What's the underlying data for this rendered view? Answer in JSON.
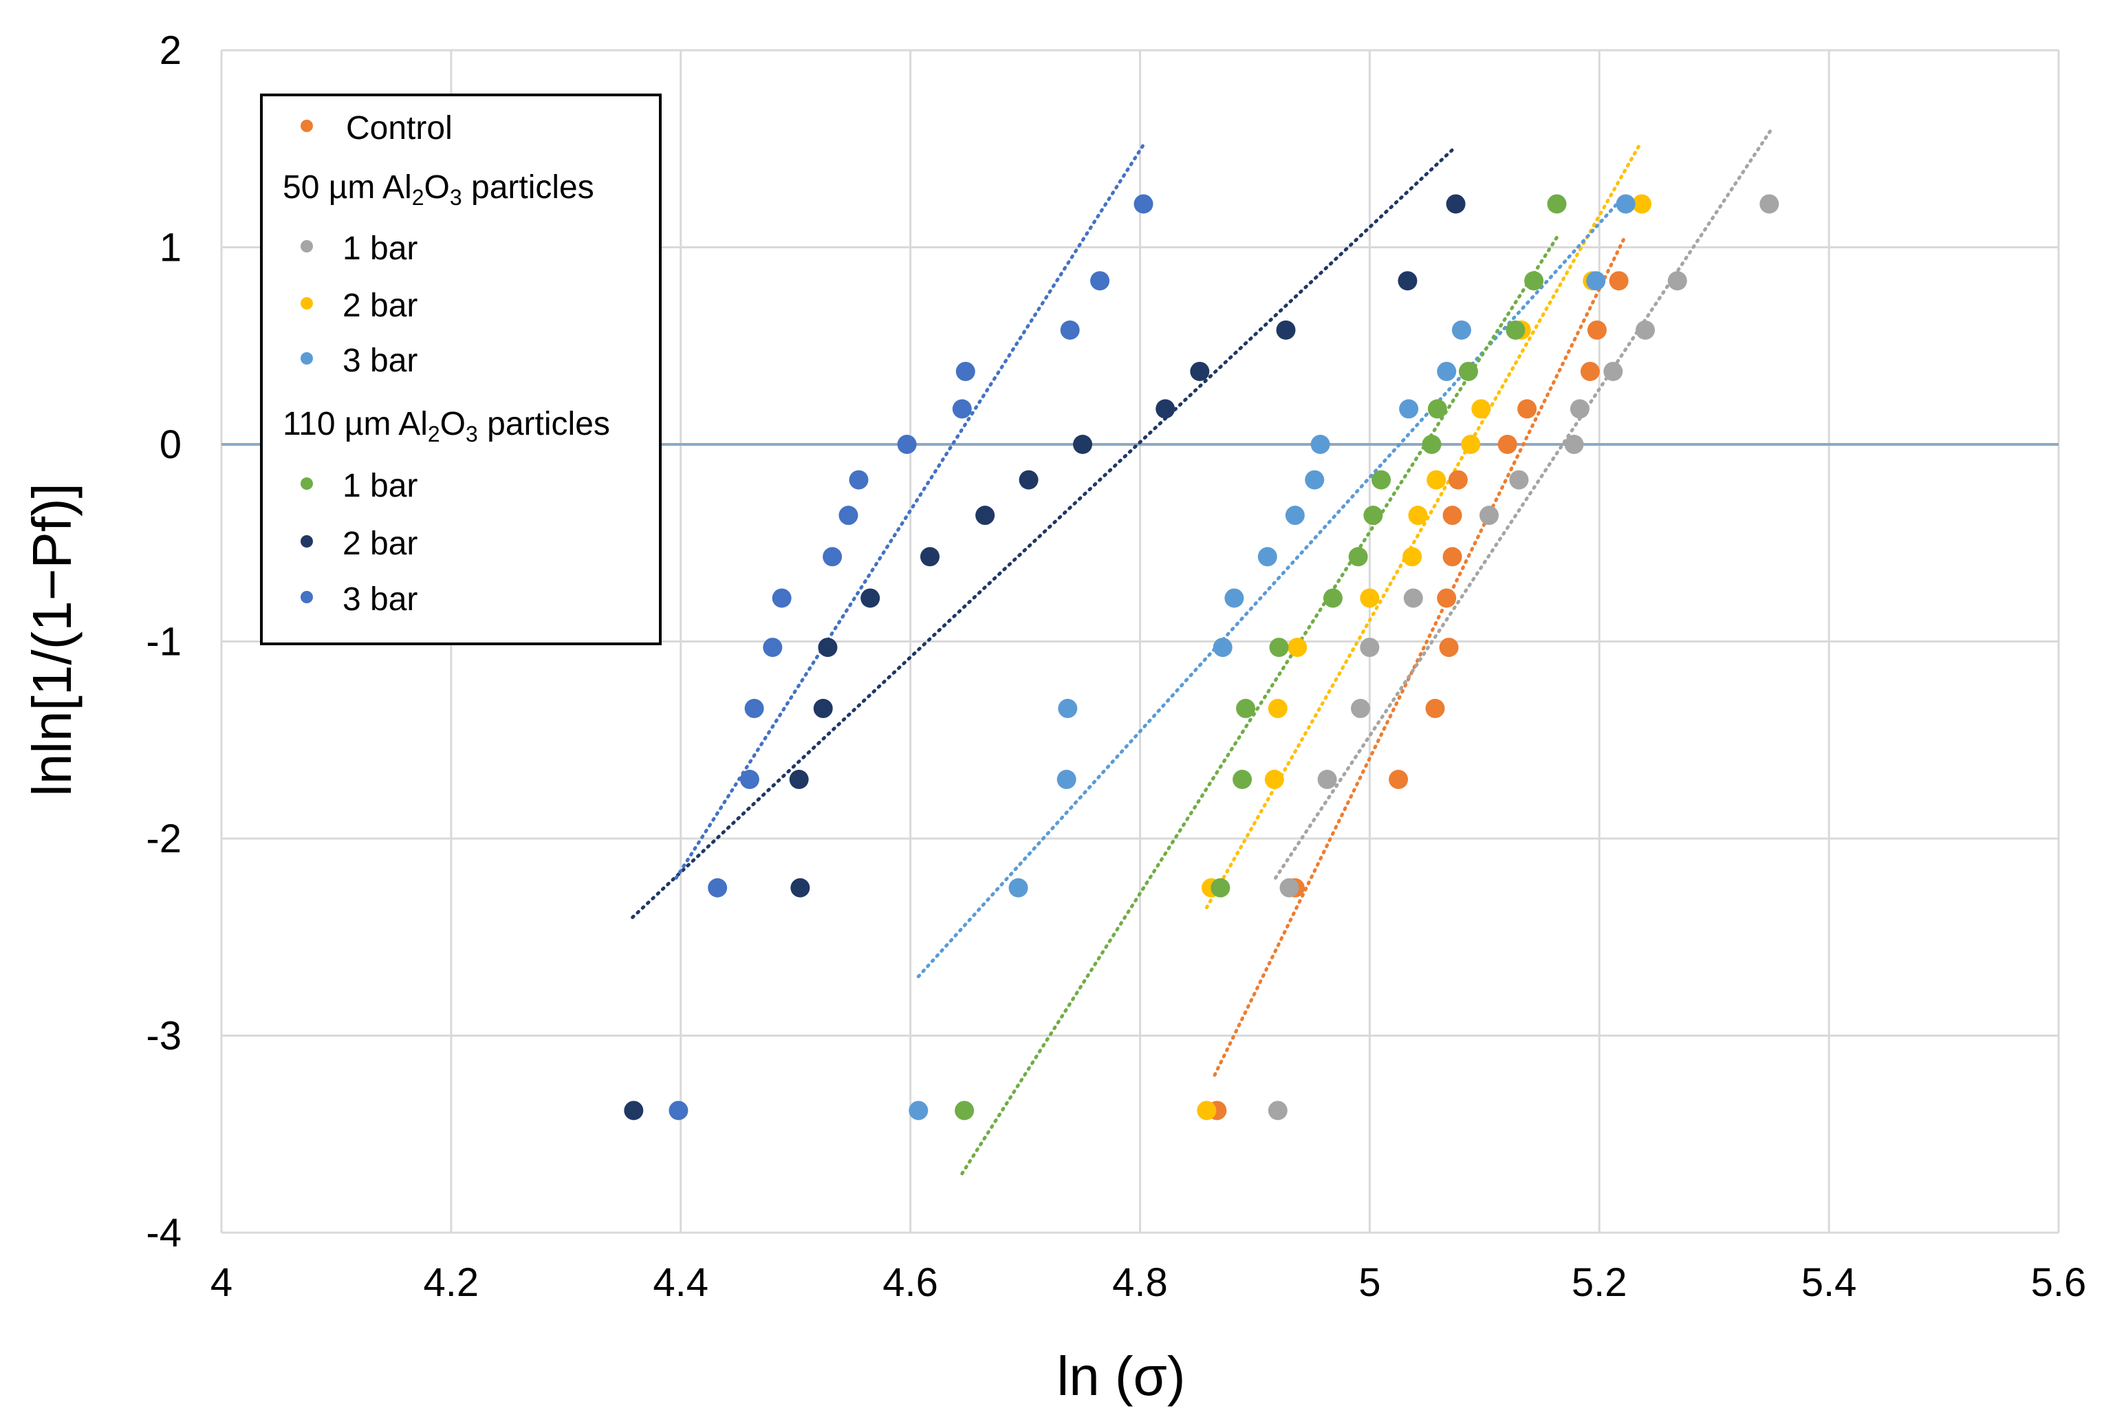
{
  "chart_data": {
    "type": "scatter",
    "title": "",
    "xlabel": "ln (σ)",
    "ylabel": "lnln[1/(1−Pf)]",
    "xlim": [
      4,
      5.6
    ],
    "ylim": [
      -4,
      2
    ],
    "xticks": [
      4,
      4.2,
      4.4,
      4.6,
      4.8,
      5,
      5.2,
      5.4,
      5.6
    ],
    "xtick_labels": [
      "4",
      "4.2",
      "4.4",
      "4.6",
      "4.8",
      "5",
      "5.2",
      "5.4",
      "5.6"
    ],
    "yticks": [
      -4,
      -3,
      -2,
      -1,
      0,
      1,
      2
    ],
    "ytick_labels": [
      "-4",
      "-3",
      "-2",
      "-1",
      "0",
      "1",
      "2"
    ],
    "grid": true,
    "legend_position": "top-left",
    "legend": {
      "items": [
        {
          "kind": "entry",
          "series": 0
        },
        {
          "kind": "header",
          "text": "50 µm Al2O3 particles",
          "prefix": "50 µm Al",
          "sub1": "2",
          "mid": "O",
          "sub2": "3",
          "suffix": " particles"
        },
        {
          "kind": "entry",
          "series": 1
        },
        {
          "kind": "entry",
          "series": 2
        },
        {
          "kind": "entry",
          "series": 3
        },
        {
          "kind": "header",
          "text": "110 µm Al2O3 particles",
          "prefix": "110 µm Al",
          "sub1": "2",
          "mid": "O",
          "sub2": "3",
          "suffix": " particles"
        },
        {
          "kind": "entry",
          "series": 4
        },
        {
          "kind": "entry",
          "series": 5
        },
        {
          "kind": "entry",
          "series": 6
        }
      ]
    },
    "series": [
      {
        "name": "Control",
        "color": "#ED7D31",
        "x": [
          4.867,
          4.935,
          5.025,
          5.057,
          5.069,
          5.067,
          5.072,
          5.072,
          5.077,
          5.12,
          5.137,
          5.192,
          5.198,
          5.217
        ],
        "y": [
          -3.38,
          -2.25,
          -1.7,
          -1.34,
          -1.03,
          -0.78,
          -0.57,
          -0.36,
          -0.18,
          0.0,
          0.18,
          0.37,
          0.58,
          0.83
        ],
        "trend": {
          "x": [
            4.865,
            5.222
          ],
          "y": [
            -3.2,
            1.05
          ]
        }
      },
      {
        "name": "1 bar",
        "group": "50 µm Al2O3 particles",
        "color": "#A5A5A5",
        "x": [
          4.92,
          4.93,
          4.963,
          4.992,
          5.0,
          5.038,
          5.104,
          5.13,
          5.178,
          5.183,
          5.212,
          5.24,
          5.268,
          5.348
        ],
        "y": [
          -3.38,
          -2.25,
          -1.7,
          -1.34,
          -1.03,
          -0.78,
          -0.36,
          -0.18,
          0.0,
          0.18,
          0.37,
          0.58,
          0.83,
          1.22
        ],
        "trend": {
          "x": [
            4.918,
            5.35
          ],
          "y": [
            -2.2,
            1.6
          ]
        }
      },
      {
        "name": "2 bar",
        "group": "50 µm Al2O3 particles",
        "color": "#FFC000",
        "x": [
          4.858,
          4.862,
          4.917,
          4.92,
          4.937,
          5.0,
          5.037,
          5.042,
          5.058,
          5.088,
          5.097,
          5.132,
          5.194,
          5.237
        ],
        "y": [
          -3.38,
          -2.25,
          -1.7,
          -1.34,
          -1.03,
          -0.78,
          -0.57,
          -0.36,
          -0.18,
          0.0,
          0.18,
          0.58,
          0.83,
          1.22
        ],
        "trend": {
          "x": [
            4.858,
            5.236
          ],
          "y": [
            -2.35,
            1.53
          ]
        }
      },
      {
        "name": "3 bar",
        "group": "50 µm Al2O3 particles",
        "color": "#5B9BD5",
        "x": [
          4.607,
          4.694,
          4.736,
          4.737,
          4.872,
          4.882,
          4.911,
          4.935,
          4.952,
          4.957,
          5.034,
          5.067,
          5.08,
          5.197,
          5.223
        ],
        "y": [
          -3.38,
          -2.25,
          -1.7,
          -1.34,
          -1.03,
          -0.78,
          -0.57,
          -0.36,
          -0.18,
          0.0,
          0.18,
          0.37,
          0.58,
          0.83,
          1.22
        ],
        "trend": {
          "x": [
            4.607,
            5.22
          ],
          "y": [
            -2.7,
            1.25
          ]
        }
      },
      {
        "name": "1 bar",
        "group": "110 µm Al2O3 particles",
        "color": "#70AD47",
        "x": [
          4.647,
          4.87,
          4.889,
          4.892,
          4.921,
          4.968,
          4.99,
          5.003,
          5.01,
          5.054,
          5.059,
          5.086,
          5.127,
          5.143,
          5.163
        ],
        "y": [
          -3.38,
          -2.25,
          -1.7,
          -1.34,
          -1.03,
          -0.78,
          -0.57,
          -0.36,
          -0.18,
          0.0,
          0.18,
          0.37,
          0.58,
          0.83,
          1.22
        ],
        "trend": {
          "x": [
            4.645,
            5.163
          ],
          "y": [
            -3.7,
            1.05
          ]
        }
      },
      {
        "name": "2 bar",
        "group": "110 µm Al2O3 particles",
        "color": "#203864",
        "x": [
          4.359,
          4.504,
          4.503,
          4.524,
          4.528,
          4.565,
          4.617,
          4.665,
          4.703,
          4.75,
          4.822,
          4.852,
          4.927,
          5.033,
          5.075
        ],
        "y": [
          -3.38,
          -2.25,
          -1.7,
          -1.34,
          -1.03,
          -0.78,
          -0.57,
          -0.36,
          -0.18,
          0.0,
          0.18,
          0.37,
          0.58,
          0.83,
          1.22
        ],
        "trend": {
          "x": [
            4.358,
            5.073
          ],
          "y": [
            -2.4,
            1.5
          ]
        }
      },
      {
        "name": "3 bar",
        "group": "110 µm Al2O3 particles",
        "color": "#4472C4",
        "x": [
          4.398,
          4.432,
          4.46,
          4.464,
          4.48,
          4.488,
          4.532,
          4.546,
          4.555,
          4.597,
          4.645,
          4.648,
          4.739,
          4.765,
          4.803
        ],
        "y": [
          -3.38,
          -2.25,
          -1.7,
          -1.34,
          -1.03,
          -0.78,
          -0.57,
          -0.36,
          -0.18,
          0.0,
          0.18,
          0.37,
          0.58,
          0.83,
          1.22
        ],
        "trend": {
          "x": [
            4.396,
            4.803
          ],
          "y": [
            -2.2,
            1.52
          ]
        }
      }
    ]
  }
}
